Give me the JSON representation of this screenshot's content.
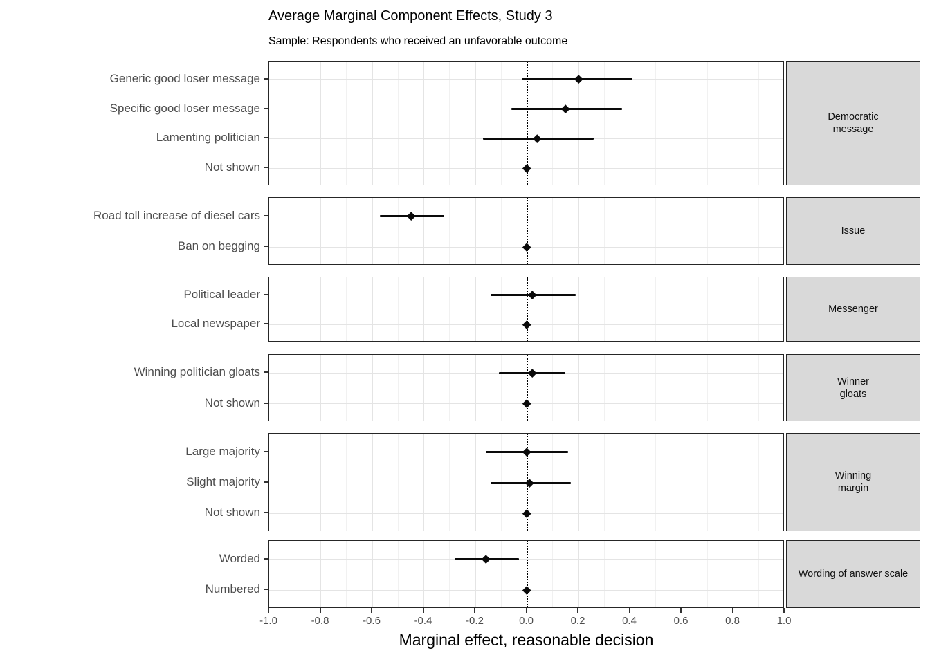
{
  "chart_data": {
    "type": "pointrange",
    "orientation": "horizontal",
    "title": "Average Marginal Component Effects, Study 3",
    "subtitle": "Sample: Respondents who received an unfavorable outcome",
    "xlabel": "Marginal effect, reasonable decision",
    "ylabel": "",
    "xlim": [
      -1.0,
      1.0
    ],
    "x_ticks": [
      -1.0,
      -0.8,
      -0.6,
      -0.4,
      -0.2,
      0.0,
      0.2,
      0.4,
      0.6,
      0.8,
      1.0
    ],
    "x_tick_labels": [
      "-1.0",
      "-0.8",
      "-0.6",
      "-0.4",
      "-0.2",
      "0.0",
      "0.2",
      "0.4",
      "0.6",
      "0.8",
      "1.0"
    ],
    "grid": "on",
    "legend": "none",
    "reference_line": 0.0,
    "facets": [
      {
        "strip": "Democratic message",
        "strip_lines": [
          "Democratic",
          "message"
        ],
        "rows": [
          {
            "label": "Generic good loser message",
            "estimate": 0.2,
            "ci_low": -0.02,
            "ci_high": 0.41,
            "reference": false
          },
          {
            "label": "Specific good loser message",
            "estimate": 0.15,
            "ci_low": -0.06,
            "ci_high": 0.37,
            "reference": false
          },
          {
            "label": "Lamenting politician",
            "estimate": 0.04,
            "ci_low": -0.17,
            "ci_high": 0.26,
            "reference": false
          },
          {
            "label": "Not shown",
            "estimate": 0.0,
            "ci_low": null,
            "ci_high": null,
            "reference": true
          }
        ]
      },
      {
        "strip": "Issue",
        "strip_lines": [
          "Issue"
        ],
        "rows": [
          {
            "label": "Road toll increase of diesel cars",
            "estimate": -0.45,
            "ci_low": -0.57,
            "ci_high": -0.32,
            "reference": false
          },
          {
            "label": "Ban on begging",
            "estimate": 0.0,
            "ci_low": null,
            "ci_high": null,
            "reference": true
          }
        ]
      },
      {
        "strip": "Messenger",
        "strip_lines": [
          "Messenger"
        ],
        "rows": [
          {
            "label": "Political leader",
            "estimate": 0.02,
            "ci_low": -0.14,
            "ci_high": 0.19,
            "reference": false
          },
          {
            "label": "Local newspaper",
            "estimate": 0.0,
            "ci_low": null,
            "ci_high": null,
            "reference": true
          }
        ]
      },
      {
        "strip": "Winner gloats",
        "strip_lines": [
          "Winner",
          "gloats"
        ],
        "rows": [
          {
            "label": "Winning politician gloats",
            "estimate": 0.02,
            "ci_low": -0.11,
            "ci_high": 0.15,
            "reference": false
          },
          {
            "label": "Not shown",
            "estimate": 0.0,
            "ci_low": null,
            "ci_high": null,
            "reference": true
          }
        ]
      },
      {
        "strip": "Winning margin",
        "strip_lines": [
          "Winning",
          "margin"
        ],
        "rows": [
          {
            "label": "Large majority",
            "estimate": 0.0,
            "ci_low": -0.16,
            "ci_high": 0.16,
            "reference": false
          },
          {
            "label": "Slight majority",
            "estimate": 0.01,
            "ci_low": -0.14,
            "ci_high": 0.17,
            "reference": false
          },
          {
            "label": "Not shown",
            "estimate": 0.0,
            "ci_low": null,
            "ci_high": null,
            "reference": true
          }
        ]
      },
      {
        "strip": "Wording of answer scale",
        "strip_lines": [
          "Wording of answer scale"
        ],
        "rows": [
          {
            "label": "Worded",
            "estimate": -0.16,
            "ci_low": -0.28,
            "ci_high": -0.03,
            "reference": false
          },
          {
            "label": "Numbered",
            "estimate": 0.0,
            "ci_low": null,
            "ci_high": null,
            "reference": true
          }
        ]
      }
    ],
    "colors": {
      "point": "#0a0a0a",
      "interval": "#0a0a0a",
      "reference_line": "#000000",
      "panel_border": "#262626",
      "strip_fill": "#d9d9d9",
      "strip_border": "#262626",
      "grid_major": "#e4e4e4",
      "grid_minor": "#f1f1f1",
      "axis_text": "#4d4d4d",
      "title_text": "#000000"
    }
  }
}
